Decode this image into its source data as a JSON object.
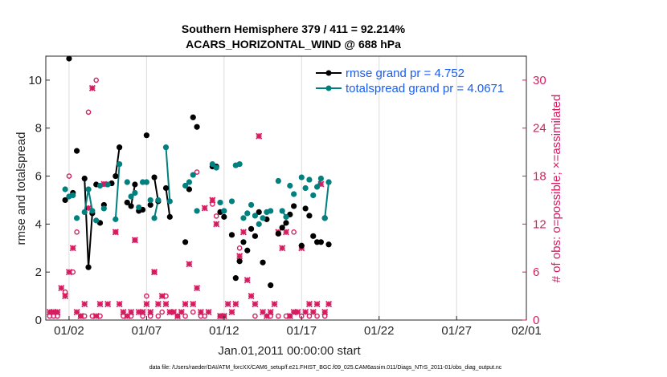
{
  "chart_data": {
    "type": "line",
    "title": "Southern Hemisphere 379 / 411 = 92.214%",
    "subtitle": "ACARS_HORIZONTAL_WIND @ 688 hPa",
    "xlabel": "Jan.01,2011 00:00:00 start",
    "ylabel": "rmse and totalspread",
    "ylabel_right": "# of obs: o=possible; ×=assimilated",
    "footnote": "data file: /Users/raeder/DAI/ATM_forcXX/CAM6_setup/f.e21.FHIST_BGC.f09_025.CAM6assim.011/Diags_NTrS_2011-01/obs_diag_output.nc",
    "xlim": [
      0.5,
      31.5
    ],
    "ylim": [
      0,
      11
    ],
    "ylim_right": [
      0,
      33
    ],
    "xticks": [
      {
        "x": 2,
        "label": "01/02"
      },
      {
        "x": 7,
        "label": "01/07"
      },
      {
        "x": 12,
        "label": "01/12"
      },
      {
        "x": 17,
        "label": "01/17"
      },
      {
        "x": 22,
        "label": "01/22"
      },
      {
        "x": 27,
        "label": "01/27"
      },
      {
        "x": 32,
        "label": "02/01"
      }
    ],
    "yticks": [
      0,
      2,
      4,
      6,
      8,
      10
    ],
    "yticks_right": [
      0,
      6,
      12,
      18,
      24,
      30
    ],
    "legend_location": "top-right",
    "series": [
      {
        "name": "rmse grand pr = 4.752",
        "color": "#000000",
        "marker": "dot",
        "points": [
          [
            1.75,
            5.0
          ],
          [
            2.0,
            10.9
          ],
          [
            2.25,
            5.3
          ],
          [
            2.5,
            7.05
          ],
          [
            3.0,
            5.9
          ],
          [
            3.25,
            2.2
          ],
          [
            3.5,
            4.45
          ],
          [
            3.75,
            5.65
          ],
          [
            4.0,
            4.05
          ],
          [
            4.25,
            4.8
          ],
          [
            4.75,
            5.7
          ],
          [
            5.0,
            6.0
          ],
          [
            5.25,
            7.2
          ],
          [
            5.75,
            4.9
          ],
          [
            6.0,
            4.75
          ],
          [
            6.25,
            5.65
          ],
          [
            6.5,
            4.55
          ],
          [
            6.75,
            4.6
          ],
          [
            7.0,
            7.7
          ],
          [
            7.25,
            4.8
          ],
          [
            7.5,
            5.95
          ],
          [
            7.75,
            4.95
          ],
          [
            8.25,
            5.5
          ],
          [
            8.5,
            4.3
          ],
          [
            9.5,
            3.25
          ],
          [
            9.75,
            5.45
          ],
          [
            10.0,
            8.45
          ],
          [
            10.25,
            8.05
          ],
          [
            11.25,
            6.4
          ],
          [
            11.5,
            6.4
          ],
          [
            11.75,
            4.5
          ],
          [
            12.0,
            4.3
          ],
          [
            12.5,
            3.55
          ],
          [
            12.75,
            1.75
          ],
          [
            13.0,
            2.45
          ],
          [
            13.25,
            3.25
          ],
          [
            13.5,
            2.9
          ],
          [
            13.75,
            3.8
          ],
          [
            14.0,
            3.5
          ],
          [
            14.25,
            4.5
          ],
          [
            14.5,
            2.4
          ],
          [
            14.75,
            4.2
          ],
          [
            15.0,
            1.45
          ],
          [
            15.5,
            3.6
          ],
          [
            15.75,
            3.85
          ],
          [
            16.0,
            4.05
          ],
          [
            16.25,
            4.4
          ],
          [
            16.5,
            4.75
          ],
          [
            17.0,
            3.1
          ],
          [
            17.25,
            4.65
          ],
          [
            17.5,
            4.35
          ],
          [
            17.75,
            3.5
          ],
          [
            18.0,
            3.25
          ],
          [
            18.25,
            3.25
          ],
          [
            18.5,
            4.25
          ],
          [
            18.75,
            3.15
          ]
        ],
        "segments": [
          [
            [
              3.0,
              5.9
            ],
            [
              3.25,
              2.2
            ]
          ],
          [
            [
              3.25,
              2.2
            ],
            [
              3.5,
              4.45
            ]
          ],
          [
            [
              5.0,
              6.0
            ],
            [
              5.25,
              7.2
            ]
          ],
          [
            [
              6.0,
              4.75
            ],
            [
              6.25,
              5.65
            ]
          ],
          [
            [
              7.5,
              5.95
            ],
            [
              7.75,
              4.95
            ]
          ],
          [
            [
              8.25,
              5.5
            ],
            [
              8.5,
              4.3
            ]
          ],
          [
            [
              15.75,
              3.85
            ],
            [
              16.0,
              4.05
            ]
          ],
          [
            [
              18.0,
              3.25
            ],
            [
              18.25,
              3.25
            ]
          ]
        ]
      },
      {
        "name": "totalspread grand pr = 4.0671",
        "color": "#00807f",
        "marker": "dot",
        "points": [
          [
            1.75,
            5.45
          ],
          [
            2.0,
            5.15
          ],
          [
            2.25,
            5.2
          ],
          [
            2.5,
            4.25
          ],
          [
            3.0,
            4.5
          ],
          [
            3.25,
            5.45
          ],
          [
            3.5,
            4.55
          ],
          [
            3.75,
            4.15
          ],
          [
            4.0,
            5.6
          ],
          [
            4.25,
            4.65
          ],
          [
            4.5,
            5.65
          ],
          [
            5.0,
            4.2
          ],
          [
            5.25,
            6.5
          ],
          [
            5.75,
            5.75
          ],
          [
            6.0,
            5.15
          ],
          [
            6.25,
            5.3
          ],
          [
            6.5,
            4.7
          ],
          [
            6.75,
            5.75
          ],
          [
            7.0,
            5.75
          ],
          [
            7.25,
            5.0
          ],
          [
            7.5,
            4.25
          ],
          [
            7.75,
            5.0
          ],
          [
            8.25,
            7.2
          ],
          [
            8.5,
            4.95
          ],
          [
            9.5,
            5.6
          ],
          [
            9.75,
            5.75
          ],
          [
            10.0,
            6.05
          ],
          [
            10.25,
            4.55
          ],
          [
            11.25,
            6.5
          ],
          [
            11.5,
            6.35
          ],
          [
            11.75,
            4.9
          ],
          [
            12.0,
            4.55
          ],
          [
            12.5,
            4.95
          ],
          [
            12.75,
            6.45
          ],
          [
            13.0,
            6.5
          ],
          [
            13.25,
            4.25
          ],
          [
            13.5,
            4.45
          ],
          [
            13.75,
            4.8
          ],
          [
            14.0,
            4.35
          ],
          [
            14.25,
            4.0
          ],
          [
            14.5,
            4.25
          ],
          [
            14.75,
            4.5
          ],
          [
            15.0,
            4.55
          ],
          [
            15.5,
            5.8
          ],
          [
            15.75,
            4.55
          ],
          [
            16.0,
            4.3
          ],
          [
            16.25,
            5.6
          ],
          [
            16.5,
            5.25
          ],
          [
            17.0,
            5.95
          ],
          [
            17.25,
            5.5
          ],
          [
            17.5,
            5.85
          ],
          [
            17.75,
            5.2
          ],
          [
            18.0,
            5.55
          ],
          [
            18.25,
            5.9
          ],
          [
            18.5,
            4.25
          ],
          [
            18.75,
            5.75
          ]
        ],
        "segments": [
          [
            [
              3.0,
              4.5
            ],
            [
              3.25,
              5.45
            ]
          ],
          [
            [
              3.25,
              5.45
            ],
            [
              3.5,
              4.55
            ]
          ],
          [
            [
              5.0,
              4.2
            ],
            [
              5.25,
              6.5
            ]
          ],
          [
            [
              6.0,
              5.15
            ],
            [
              6.25,
              5.3
            ]
          ],
          [
            [
              7.5,
              4.25
            ],
            [
              7.75,
              5.0
            ]
          ],
          [
            [
              8.25,
              7.2
            ],
            [
              8.5,
              4.95
            ]
          ],
          [
            [
              15.75,
              4.55
            ],
            [
              16.0,
              4.3
            ]
          ],
          [
            [
              18.0,
              5.55
            ],
            [
              18.25,
              5.9
            ]
          ],
          [
            [
              18.5,
              4.25
            ],
            [
              18.75,
              5.75
            ]
          ]
        ]
      },
      {
        "name": "possible obs",
        "axis": "right",
        "color": "#d81b60",
        "marker": "circle",
        "points": [
          [
            0.75,
            0.5
          ],
          [
            1.0,
            0.5
          ],
          [
            1.25,
            0.5
          ],
          [
            1.75,
            3.5
          ],
          [
            2.0,
            18
          ],
          [
            2.25,
            6
          ],
          [
            2.5,
            11
          ],
          [
            2.75,
            0.5
          ],
          [
            3.0,
            0.5
          ],
          [
            3.25,
            26
          ],
          [
            3.5,
            0.5
          ],
          [
            3.75,
            30
          ],
          [
            4.0,
            0.5
          ],
          [
            4.25,
            17
          ],
          [
            5.0,
            11
          ],
          [
            5.5,
            0.5
          ],
          [
            6.0,
            0.5
          ],
          [
            6.25,
            10
          ],
          [
            6.75,
            0.5
          ],
          [
            7.0,
            3
          ],
          [
            7.25,
            0.5
          ],
          [
            7.5,
            6
          ],
          [
            7.75,
            0.5
          ],
          [
            8.0,
            1
          ],
          [
            8.25,
            3
          ],
          [
            9.0,
            0.5
          ],
          [
            9.5,
            0.5
          ],
          [
            10.0,
            1
          ],
          [
            10.25,
            18.5
          ],
          [
            10.5,
            0.5
          ],
          [
            10.75,
            0.5
          ],
          [
            11.25,
            14.5
          ],
          [
            11.5,
            13
          ],
          [
            11.75,
            0.5
          ],
          [
            12.0,
            0.5
          ],
          [
            13.0,
            9
          ],
          [
            14.0,
            0.5
          ],
          [
            15.0,
            0.5
          ],
          [
            15.5,
            0.5
          ],
          [
            16.0,
            0.5
          ],
          [
            16.25,
            0.5
          ],
          [
            16.5,
            11
          ],
          [
            17.0,
            0.5
          ],
          [
            17.5,
            0.5
          ],
          [
            18.0,
            0.5
          ],
          [
            18.5,
            0.5
          ]
        ]
      },
      {
        "name": "assimilated obs",
        "axis": "right",
        "color": "#d81b60",
        "marker": "x",
        "points": [
          [
            0.75,
            1
          ],
          [
            1.0,
            1
          ],
          [
            1.25,
            1
          ],
          [
            1.5,
            4
          ],
          [
            1.75,
            3
          ],
          [
            2.0,
            6
          ],
          [
            2.25,
            9
          ],
          [
            2.5,
            1
          ],
          [
            2.75,
            0.5
          ],
          [
            3.0,
            2
          ],
          [
            3.25,
            14
          ],
          [
            3.5,
            29
          ],
          [
            3.75,
            0.5
          ],
          [
            4.0,
            2
          ],
          [
            4.25,
            17
          ],
          [
            4.5,
            2
          ],
          [
            5.0,
            11
          ],
          [
            5.25,
            2
          ],
          [
            5.5,
            1
          ],
          [
            5.75,
            0.5
          ],
          [
            6.0,
            1
          ],
          [
            6.25,
            10
          ],
          [
            6.5,
            1
          ],
          [
            6.75,
            1
          ],
          [
            7.0,
            2
          ],
          [
            7.25,
            1
          ],
          [
            7.5,
            6
          ],
          [
            7.75,
            2
          ],
          [
            8.0,
            3
          ],
          [
            8.25,
            2
          ],
          [
            8.5,
            1
          ],
          [
            8.75,
            1
          ],
          [
            9.0,
            0.5
          ],
          [
            9.25,
            1
          ],
          [
            9.5,
            2
          ],
          [
            9.75,
            7
          ],
          [
            10.0,
            2
          ],
          [
            10.25,
            4
          ],
          [
            10.5,
            1
          ],
          [
            10.75,
            14
          ],
          [
            11.0,
            1
          ],
          [
            11.25,
            15
          ],
          [
            11.5,
            12
          ],
          [
            11.75,
            0.5
          ],
          [
            12.0,
            0.5
          ],
          [
            12.25,
            2
          ],
          [
            12.5,
            1
          ],
          [
            12.75,
            2
          ],
          [
            13.0,
            8
          ],
          [
            13.25,
            11
          ],
          [
            13.5,
            5
          ],
          [
            13.75,
            3
          ],
          [
            14.0,
            2
          ],
          [
            14.25,
            23
          ],
          [
            14.5,
            1
          ],
          [
            14.75,
            0.5
          ],
          [
            15.0,
            1
          ],
          [
            15.25,
            2
          ],
          [
            15.5,
            11
          ],
          [
            15.75,
            9
          ],
          [
            16.0,
            11
          ],
          [
            16.25,
            0.5
          ],
          [
            16.5,
            1
          ],
          [
            16.75,
            1
          ],
          [
            17.0,
            9
          ],
          [
            17.25,
            1
          ],
          [
            17.5,
            2
          ],
          [
            17.75,
            1
          ],
          [
            18.0,
            2
          ],
          [
            18.25,
            17
          ],
          [
            18.5,
            1
          ],
          [
            18.75,
            2
          ]
        ]
      }
    ]
  }
}
